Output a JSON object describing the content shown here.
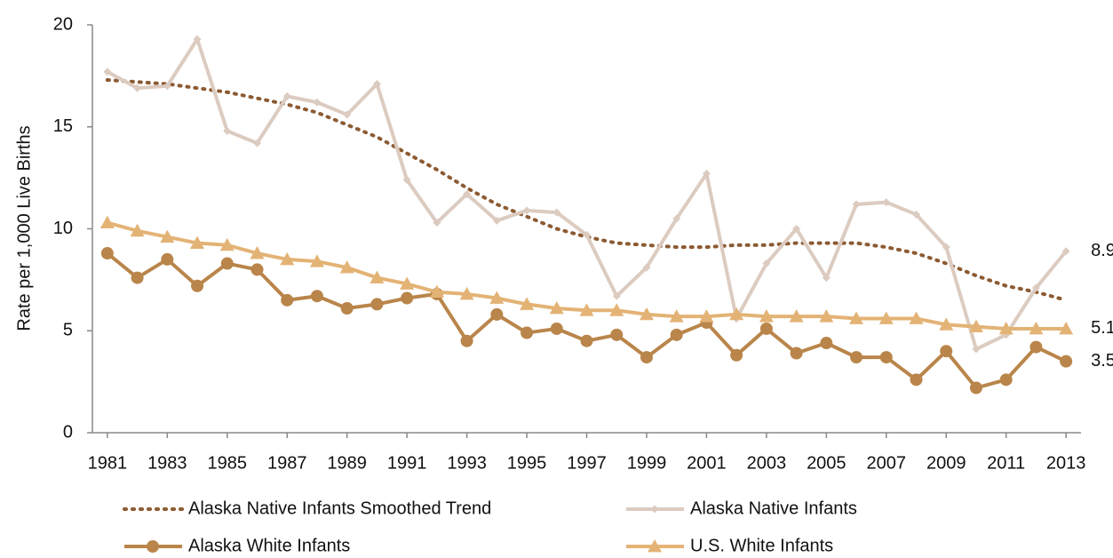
{
  "chart_data": {
    "type": "line",
    "y_label": "Rate per 1,000 Live Births",
    "x": [
      1981,
      1982,
      1983,
      1984,
      1985,
      1986,
      1987,
      1988,
      1989,
      1990,
      1991,
      1992,
      1993,
      1994,
      1995,
      1996,
      1997,
      1998,
      1999,
      2000,
      2001,
      2002,
      2003,
      2004,
      2005,
      2006,
      2007,
      2008,
      2009,
      2010,
      2011,
      2012,
      2013
    ],
    "xlim": [
      1980.5,
      2013.5
    ],
    "xticks": [
      1981,
      1983,
      1985,
      1987,
      1989,
      1991,
      1993,
      1995,
      1997,
      1999,
      2001,
      2003,
      2005,
      2007,
      2009,
      2011,
      2013
    ],
    "ylim": [
      0,
      20
    ],
    "yticks": [
      0,
      5,
      10,
      15,
      20
    ],
    "grid": false,
    "legend": "bottom",
    "series": [
      {
        "name": "Alaska Native Infants Smoothed Trend",
        "color": "#8c5a32",
        "dash": "dotted",
        "marker": "none",
        "end_label": false,
        "values": [
          17.3,
          17.2,
          17.1,
          16.9,
          16.7,
          16.4,
          16.1,
          15.7,
          15.1,
          14.5,
          13.7,
          12.9,
          12.0,
          11.2,
          10.6,
          10.0,
          9.6,
          9.3,
          9.2,
          9.1,
          9.1,
          9.2,
          9.2,
          9.3,
          9.3,
          9.3,
          9.1,
          8.8,
          8.3,
          7.7,
          7.2,
          6.9,
          6.5
        ]
      },
      {
        "name": "Alaska Native Infants",
        "color": "#dccbc0",
        "dash": "solid",
        "marker": "diamond",
        "end_label": true,
        "values": [
          17.7,
          16.9,
          17.0,
          19.3,
          14.8,
          14.2,
          16.5,
          16.2,
          15.6,
          17.1,
          12.4,
          10.3,
          11.7,
          10.4,
          10.9,
          10.8,
          9.7,
          6.7,
          8.1,
          10.5,
          12.7,
          5.6,
          8.3,
          10.0,
          7.6,
          11.2,
          11.3,
          10.7,
          9.1,
          4.1,
          4.8,
          7.1,
          8.9
        ]
      },
      {
        "name": "Alaska White Infants",
        "color": "#b9854a",
        "dash": "solid",
        "marker": "circle",
        "end_label": true,
        "values": [
          8.8,
          7.6,
          8.5,
          7.2,
          8.3,
          8.0,
          6.5,
          6.7,
          6.1,
          6.3,
          6.6,
          6.8,
          4.5,
          5.8,
          4.9,
          5.1,
          4.5,
          4.8,
          3.7,
          4.8,
          5.4,
          3.8,
          5.1,
          3.9,
          4.4,
          3.7,
          3.7,
          2.6,
          4.0,
          2.2,
          2.6,
          4.2,
          3.5
        ]
      },
      {
        "name": "U.S. White Infants",
        "color": "#e3b375",
        "dash": "solid",
        "marker": "triangle",
        "end_label": true,
        "values": [
          10.3,
          9.9,
          9.6,
          9.3,
          9.2,
          8.8,
          8.5,
          8.4,
          8.1,
          7.6,
          7.3,
          6.9,
          6.8,
          6.6,
          6.3,
          6.1,
          6.0,
          6.0,
          5.8,
          5.7,
          5.7,
          5.8,
          5.7,
          5.7,
          5.7,
          5.6,
          5.6,
          5.6,
          5.3,
          5.2,
          5.1,
          5.1,
          5.1
        ]
      }
    ]
  }
}
